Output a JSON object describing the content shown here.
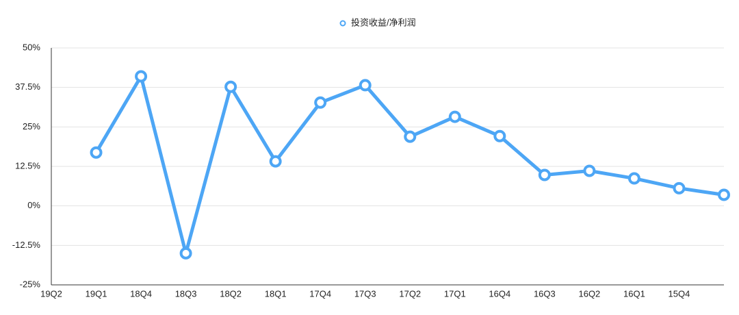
{
  "chart_data": {
    "type": "line",
    "categories": [
      "19Q2",
      "19Q1",
      "18Q4",
      "18Q3",
      "18Q2",
      "18Q1",
      "17Q4",
      "17Q3",
      "17Q2",
      "17Q1",
      "16Q4",
      "16Q3",
      "16Q2",
      "16Q1",
      "15Q4",
      null
    ],
    "series": [
      {
        "name": "投资收益/净利润",
        "color": "#4da6f5",
        "values": [
          null,
          16.9,
          41.0,
          -15.0,
          37.7,
          14.1,
          32.7,
          38.2,
          21.9,
          28.2,
          22.1,
          9.8,
          11.1,
          8.7,
          5.6,
          3.5
        ]
      }
    ],
    "ylim": [
      -25,
      50
    ],
    "yticks": [
      {
        "value": -25,
        "label": "-25%"
      },
      {
        "value": -12.5,
        "label": "-12.5%"
      },
      {
        "value": 0,
        "label": "0%"
      },
      {
        "value": 12.5,
        "label": "12.5%"
      },
      {
        "value": 25,
        "label": "25%"
      },
      {
        "value": 37.5,
        "label": "37.5%"
      },
      {
        "value": 50,
        "label": "50%"
      }
    ],
    "grid": true,
    "legend": "top"
  }
}
